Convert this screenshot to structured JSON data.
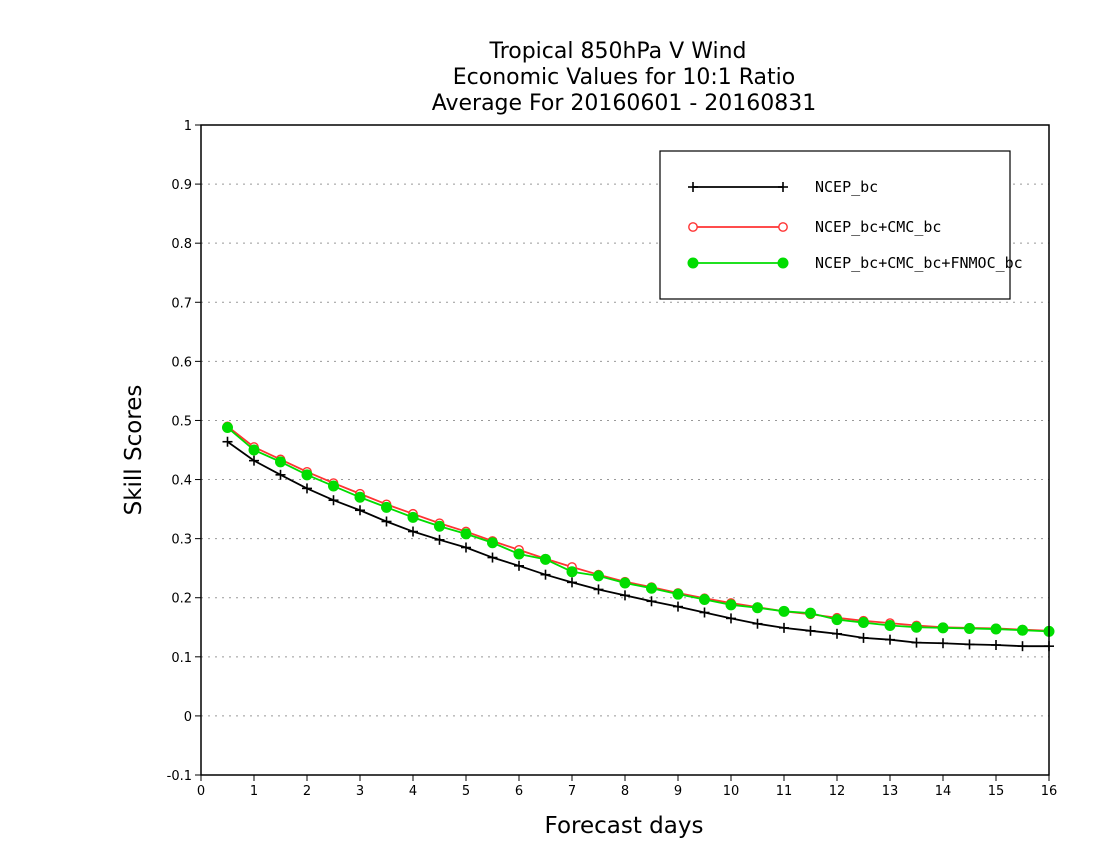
{
  "chart_data": {
    "type": "line",
    "title": [
      "Tropical 850hPa V Wind",
      "Economic Values for 10:1 Ratio",
      "Average For 20160601 - 20160831"
    ],
    "xlabel": "Forecast days",
    "ylabel": "Skill Scores",
    "xlim": [
      0,
      16
    ],
    "ylim": [
      -0.1,
      1
    ],
    "xticks": [
      0,
      1,
      2,
      3,
      4,
      5,
      6,
      7,
      8,
      9,
      10,
      11,
      12,
      13,
      14,
      15,
      16
    ],
    "yticks": [
      -0.1,
      0,
      0.1,
      0.2,
      0.3,
      0.4,
      0.5,
      0.6,
      0.7,
      0.8,
      0.9,
      1
    ],
    "ytick_labels": [
      "-0.1",
      "0",
      "0.1",
      "0.2",
      "0.3",
      "0.4",
      "0.5",
      "0.6",
      "0.7",
      "0.8",
      "0.9",
      "1"
    ],
    "grid": "horizontal dotted",
    "legend_position": "top-right",
    "x": [
      0.5,
      1,
      1.5,
      2,
      2.5,
      3,
      3.5,
      4,
      4.5,
      5,
      5.5,
      6,
      6.5,
      7,
      7.5,
      8,
      8.5,
      9,
      9.5,
      10,
      10.5,
      11,
      11.5,
      12,
      12.5,
      13,
      13.5,
      14,
      14.5,
      15,
      15.5,
      16
    ],
    "series": [
      {
        "name": "NCEP_bc",
        "color": "#000000",
        "marker": "plus",
        "values": [
          0.464,
          0.432,
          0.408,
          0.385,
          0.365,
          0.348,
          0.329,
          0.312,
          0.298,
          0.285,
          0.268,
          0.254,
          0.239,
          0.226,
          0.214,
          0.204,
          0.194,
          0.185,
          0.175,
          0.165,
          0.156,
          0.149,
          0.144,
          0.139,
          0.132,
          0.129,
          0.124,
          0.123,
          0.121,
          0.12,
          0.118,
          0.118
        ]
      },
      {
        "name": "NCEP_bc+CMC_bc",
        "color": "#ff3333",
        "marker": "open-circle",
        "values": [
          0.49,
          0.455,
          0.434,
          0.413,
          0.394,
          0.376,
          0.358,
          0.342,
          0.326,
          0.312,
          0.296,
          0.281,
          0.266,
          0.252,
          0.239,
          0.227,
          0.218,
          0.208,
          0.199,
          0.191,
          0.184,
          0.177,
          0.172,
          0.166,
          0.161,
          0.157,
          0.153,
          0.15,
          0.149,
          0.148,
          0.146,
          0.144
        ]
      },
      {
        "name": "NCEP_bc+CMC_bc+FNMOC_bc",
        "color": "#00dd00",
        "marker": "filled-circle",
        "values": [
          0.488,
          0.45,
          0.43,
          0.408,
          0.389,
          0.37,
          0.353,
          0.336,
          0.321,
          0.308,
          0.293,
          0.274,
          0.265,
          0.244,
          0.237,
          0.225,
          0.216,
          0.206,
          0.197,
          0.188,
          0.183,
          0.177,
          0.174,
          0.163,
          0.158,
          0.153,
          0.15,
          0.149,
          0.148,
          0.147,
          0.145,
          0.143
        ]
      }
    ]
  }
}
